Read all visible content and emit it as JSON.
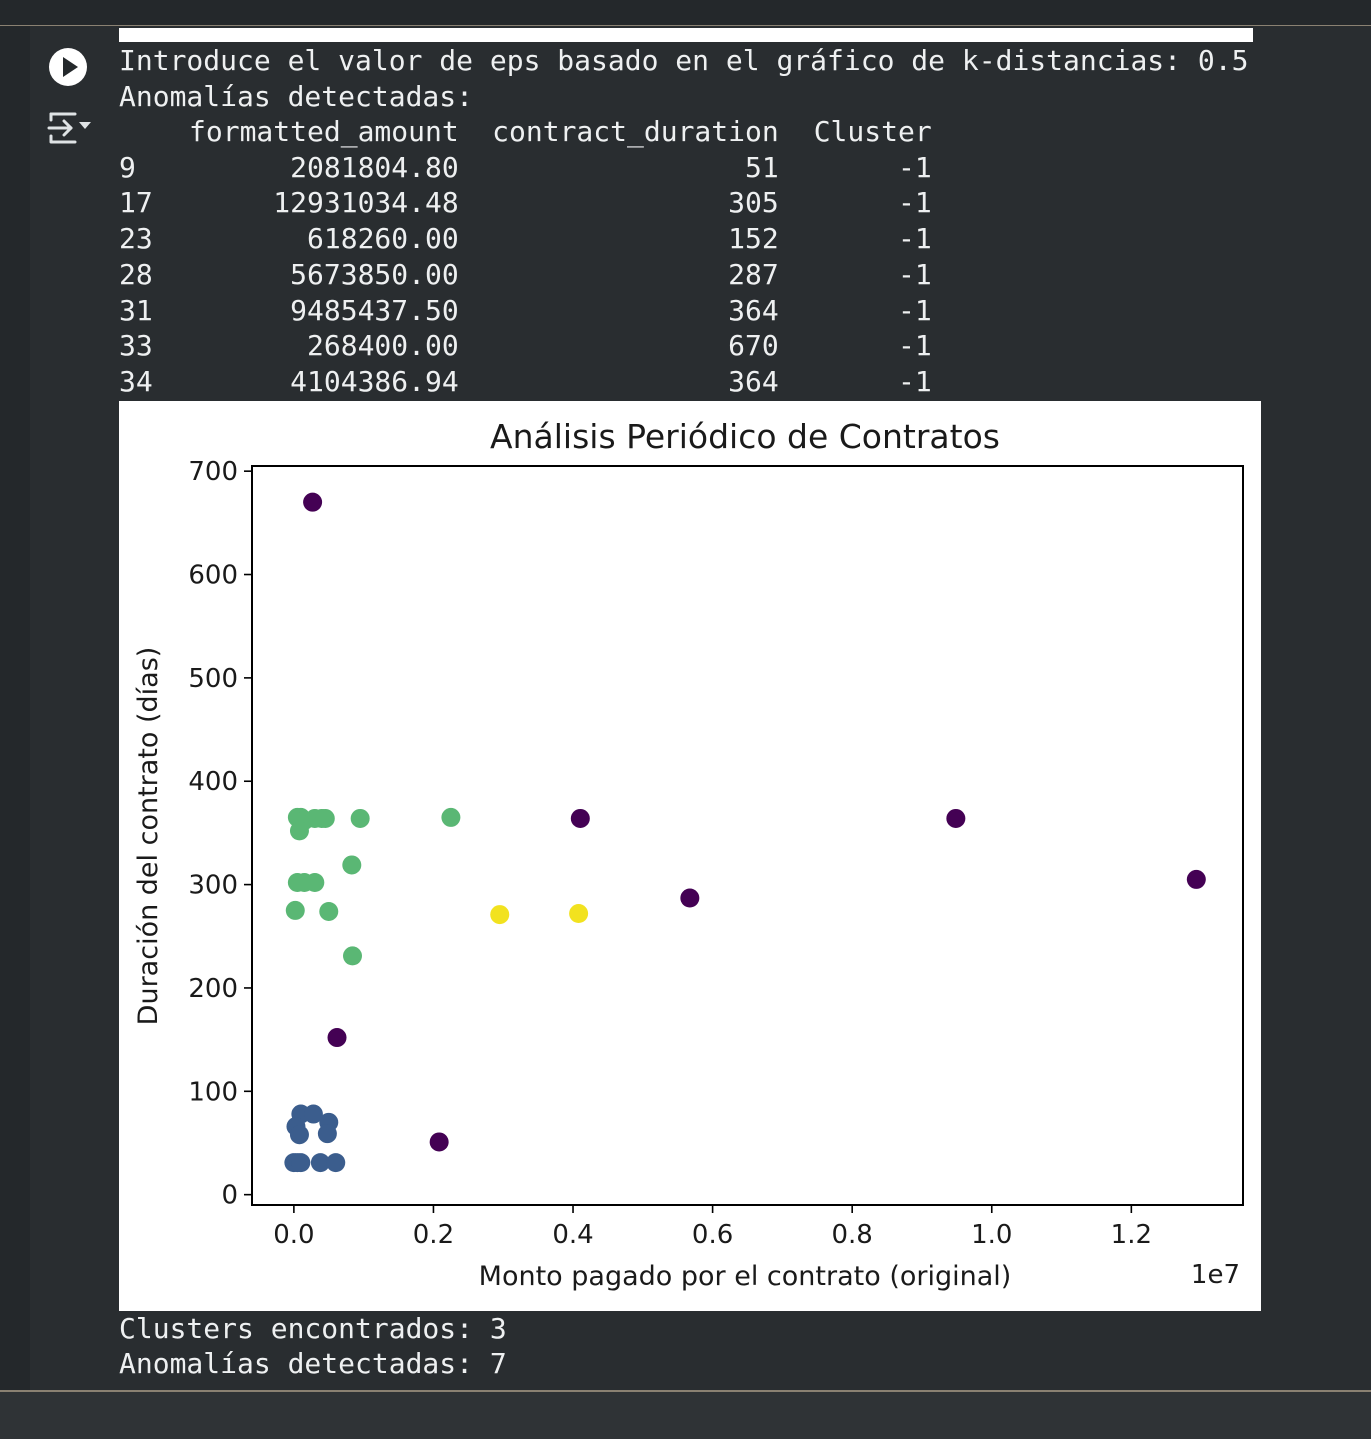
{
  "cell": {
    "run_icon": "play-icon",
    "output_icon": "output-toggle-icon"
  },
  "output": {
    "prompt_line": "Introduce el valor de eps basado en el gráfico de k-distancias: 0.5",
    "anomalies_heading": "Anomalías detectadas:",
    "table": {
      "columns": [
        "",
        "formatted_amount",
        "contract_duration",
        "Cluster"
      ],
      "rows": [
        [
          "9",
          "2081804.80",
          "51",
          "-1"
        ],
        [
          "17",
          "12931034.48",
          "305",
          "-1"
        ],
        [
          "23",
          "618260.00",
          "152",
          "-1"
        ],
        [
          "28",
          "5673850.00",
          "287",
          "-1"
        ],
        [
          "31",
          "9485437.50",
          "364",
          "-1"
        ],
        [
          "33",
          "268400.00",
          "670",
          "-1"
        ],
        [
          "34",
          "4104386.94",
          "364",
          "-1"
        ]
      ]
    },
    "clusters_line": "Clusters encontrados: 3",
    "anomalies_line": "Anomalías detectadas: 7"
  },
  "chart_data": {
    "type": "scatter",
    "title": "Análisis Periódico de Contratos",
    "xlabel": "Monto pagado por el contrato (original)",
    "ylabel": "Duración del contrato (días)",
    "x_offset_text": "1e7",
    "x_scale": 10000000,
    "xlim": [
      -600000,
      13600000
    ],
    "ylim": [
      -10,
      705
    ],
    "xticks": [
      0,
      2000000,
      4000000,
      6000000,
      8000000,
      10000000,
      12000000
    ],
    "xtick_labels": [
      "0.0",
      "0.2",
      "0.4",
      "0.6",
      "0.8",
      "1.0",
      "1.2"
    ],
    "yticks": [
      0,
      100,
      200,
      300,
      400,
      500,
      600,
      700
    ],
    "ytick_labels": [
      "0",
      "100",
      "200",
      "300",
      "400",
      "500",
      "600",
      "700"
    ],
    "grid": false,
    "cluster_colors": {
      "-1": "#440154",
      "0": "#5ab774",
      "1": "#3b5d8d",
      "2": "#f2e21f"
    },
    "points": [
      {
        "x": 2081804.8,
        "y": 51,
        "cluster": -1
      },
      {
        "x": 12931034.48,
        "y": 305,
        "cluster": -1
      },
      {
        "x": 618260,
        "y": 152,
        "cluster": -1
      },
      {
        "x": 5673850,
        "y": 287,
        "cluster": -1
      },
      {
        "x": 9485437.5,
        "y": 364,
        "cluster": -1
      },
      {
        "x": 268400,
        "y": 670,
        "cluster": -1
      },
      {
        "x": 4104386.94,
        "y": 364,
        "cluster": -1
      },
      {
        "x": 50000,
        "y": 365,
        "cluster": 0
      },
      {
        "x": 100000,
        "y": 365,
        "cluster": 0
      },
      {
        "x": 150000,
        "y": 362,
        "cluster": 0
      },
      {
        "x": 300000,
        "y": 364,
        "cluster": 0
      },
      {
        "x": 400000,
        "y": 364,
        "cluster": 0
      },
      {
        "x": 450000,
        "y": 364,
        "cluster": 0
      },
      {
        "x": 950000,
        "y": 364,
        "cluster": 0
      },
      {
        "x": 2250000,
        "y": 365,
        "cluster": 0
      },
      {
        "x": 80000,
        "y": 352,
        "cluster": 0
      },
      {
        "x": 50000,
        "y": 302,
        "cluster": 0
      },
      {
        "x": 150000,
        "y": 302,
        "cluster": 0
      },
      {
        "x": 300000,
        "y": 302,
        "cluster": 0
      },
      {
        "x": 830000,
        "y": 319,
        "cluster": 0
      },
      {
        "x": 20000,
        "y": 275,
        "cluster": 0
      },
      {
        "x": 500000,
        "y": 274,
        "cluster": 0
      },
      {
        "x": 840000,
        "y": 231,
        "cluster": 0
      },
      {
        "x": 100000,
        "y": 78,
        "cluster": 1
      },
      {
        "x": 280000,
        "y": 78,
        "cluster": 1
      },
      {
        "x": 500000,
        "y": 70,
        "cluster": 1
      },
      {
        "x": 30000,
        "y": 66,
        "cluster": 1
      },
      {
        "x": 80000,
        "y": 58,
        "cluster": 1
      },
      {
        "x": 480000,
        "y": 59,
        "cluster": 1
      },
      {
        "x": 0,
        "y": 31,
        "cluster": 1
      },
      {
        "x": 50000,
        "y": 31,
        "cluster": 1
      },
      {
        "x": 100000,
        "y": 31,
        "cluster": 1
      },
      {
        "x": 380000,
        "y": 31,
        "cluster": 1
      },
      {
        "x": 600000,
        "y": 31,
        "cluster": 1
      },
      {
        "x": 2950000,
        "y": 271,
        "cluster": 2
      },
      {
        "x": 4080000,
        "y": 272,
        "cluster": 2
      }
    ]
  }
}
